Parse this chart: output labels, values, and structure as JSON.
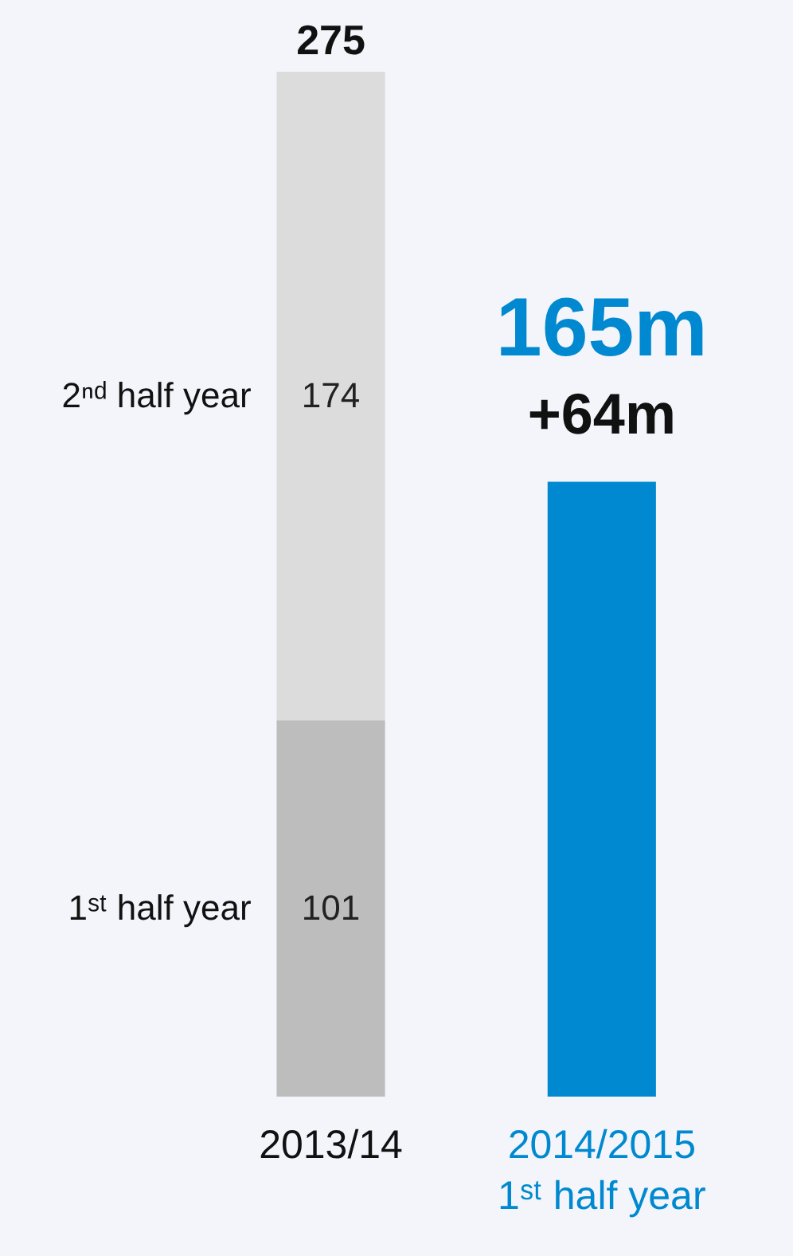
{
  "chart_data": {
    "type": "bar",
    "stacked": true,
    "categories": [
      "2013/14",
      "2014/2015\n1ˢᵗ half year"
    ],
    "series": [
      {
        "name": "1ˢᵗ half year",
        "color": "#bdbdbd",
        "values": [
          101,
          null
        ],
        "value_labels": [
          "101",
          null
        ]
      },
      {
        "name": "2ⁿᵈ half year",
        "color": "#dcdcdc",
        "values": [
          174,
          null
        ],
        "value_labels": [
          "174",
          null
        ]
      },
      {
        "color": "#0089d0",
        "values": [
          null,
          165
        ],
        "value_labels": [
          null,
          "165m"
        ]
      }
    ],
    "totals": [
      "275",
      null
    ],
    "annotations": [
      {
        "text": "+64m",
        "x": "2014/2015\n1ˢᵗ half year",
        "y": 165
      }
    ],
    "legend": false,
    "grid": false
  }
}
